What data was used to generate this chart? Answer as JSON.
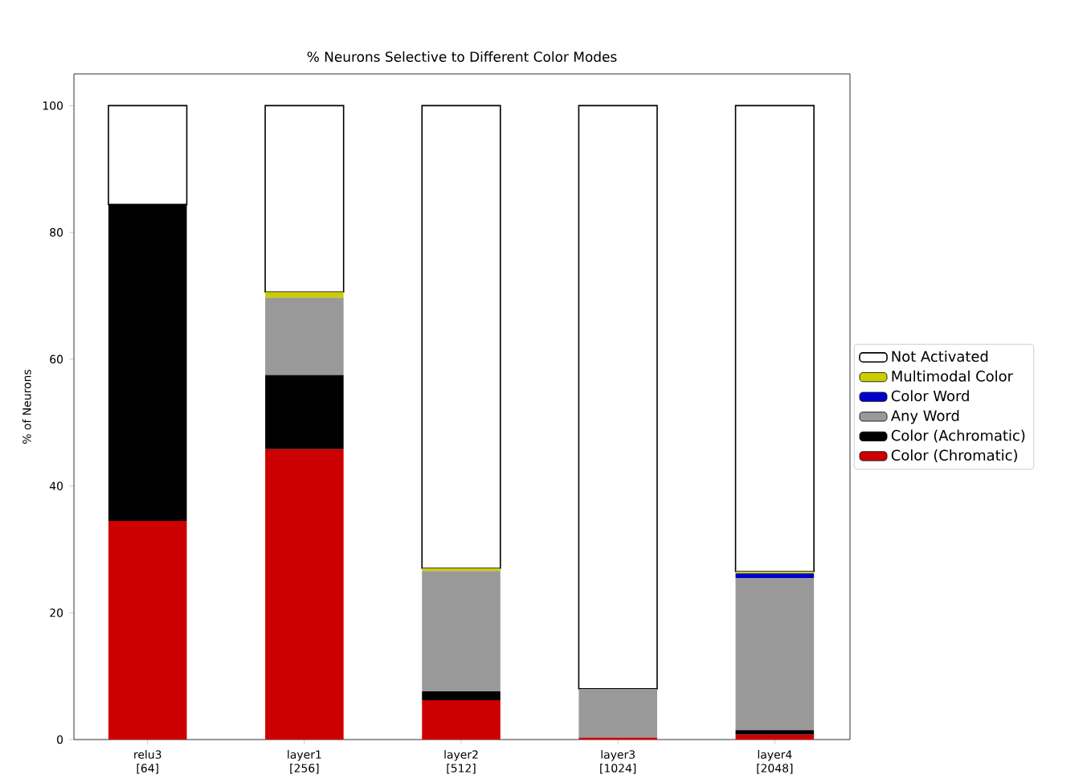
{
  "chart_data": {
    "type": "bar",
    "stacked": true,
    "title": "% Neurons Selective to Different Color Modes",
    "ylabel": "% of Neurons",
    "categories": [
      "relu3 [64]",
      "layer1 [256]",
      "layer2 [512]",
      "layer3 [1024]",
      "layer4 [2048]"
    ],
    "series": [
      {
        "name": "Color (Chromatic)",
        "color": "#cc0000",
        "values": [
          34.5,
          45.8,
          6.2,
          0.3,
          0.8
        ]
      },
      {
        "name": "Color (Achromatic)",
        "color": "#000000",
        "values": [
          49.9,
          11.7,
          1.4,
          0,
          0.7
        ]
      },
      {
        "name": "Any Word",
        "color": "#999999",
        "values": [
          0,
          12.2,
          19.0,
          7.7,
          24.0
        ]
      },
      {
        "name": "Color Word",
        "color": "#0000cc",
        "values": [
          0,
          0,
          0,
          0,
          0.7
        ]
      },
      {
        "name": "Multimodal Color",
        "color": "#cccc00",
        "values": [
          0,
          0.9,
          0.4,
          0,
          0.3
        ]
      },
      {
        "name": "Not Activated",
        "color": "#ffffff",
        "values": [
          15.6,
          29.4,
          73.0,
          92.0,
          73.5
        ]
      }
    ],
    "ylim": [
      0,
      105
    ],
    "yticks": [
      0,
      20,
      40,
      60,
      80,
      100
    ],
    "legend": "right",
    "grid": false
  }
}
